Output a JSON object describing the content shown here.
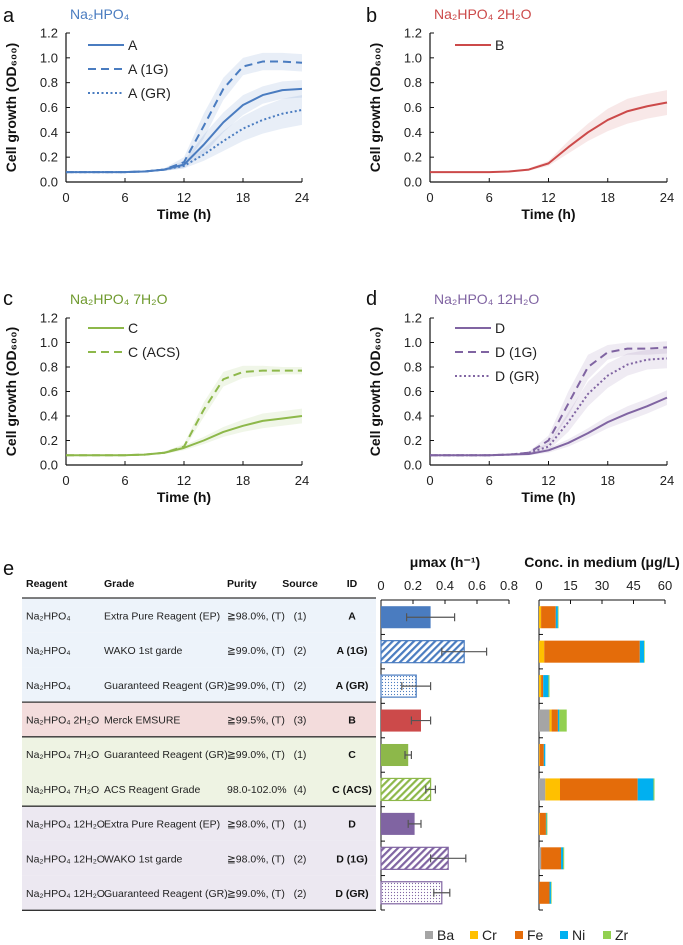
{
  "panel_letters": [
    "a",
    "b",
    "c",
    "d",
    "e"
  ],
  "chart_data": [
    {
      "type": "line",
      "id": "a",
      "title": "Na₂HPO₄",
      "title_color": "#4a7cc0",
      "xlabel": "Time (h)",
      "ylabel": "Cell growth (OD₆₀₀)",
      "xlim": [
        0,
        24
      ],
      "ylim": [
        0,
        1.2
      ],
      "xticks": [
        0,
        6,
        12,
        18,
        24
      ],
      "yticks": [
        "0.0",
        "0.2",
        "0.4",
        "0.6",
        "0.8",
        "1.0",
        "1.2"
      ],
      "x": [
        0,
        2,
        4,
        6,
        8,
        10,
        12,
        14,
        16,
        18,
        20,
        22,
        24
      ],
      "series": [
        {
          "name": "A",
          "style": "solid",
          "color": "#4a7cc0",
          "values": [
            0.08,
            0.08,
            0.08,
            0.08,
            0.085,
            0.1,
            0.14,
            0.3,
            0.48,
            0.62,
            0.7,
            0.74,
            0.75
          ],
          "err": [
            0,
            0,
            0,
            0,
            0,
            0.01,
            0.03,
            0.08,
            0.08,
            0.08,
            0.07,
            0.07,
            0.07
          ]
        },
        {
          "name": "A (1G)",
          "style": "dashed",
          "color": "#4a7cc0",
          "values": [
            0.08,
            0.08,
            0.08,
            0.08,
            0.085,
            0.1,
            0.16,
            0.45,
            0.75,
            0.93,
            0.97,
            0.97,
            0.96
          ],
          "err": [
            0,
            0,
            0,
            0,
            0,
            0.01,
            0.04,
            0.1,
            0.09,
            0.07,
            0.07,
            0.07,
            0.07
          ]
        },
        {
          "name": "A (GR)",
          "style": "dotted",
          "color": "#4a7cc0",
          "values": [
            0.08,
            0.08,
            0.08,
            0.08,
            0.085,
            0.1,
            0.13,
            0.22,
            0.33,
            0.43,
            0.5,
            0.55,
            0.58
          ],
          "err": [
            0,
            0,
            0,
            0,
            0,
            0.01,
            0.02,
            0.05,
            0.08,
            0.1,
            0.11,
            0.12,
            0.12
          ]
        }
      ]
    },
    {
      "type": "line",
      "id": "b",
      "title": "Na₂HPO₄ 2H₂O",
      "title_color": "#cc4a4a",
      "xlabel": "Time (h)",
      "ylabel": "Cell growth (OD₆₀₀)",
      "xlim": [
        0,
        24
      ],
      "ylim": [
        0,
        1.2
      ],
      "xticks": [
        0,
        6,
        12,
        18,
        24
      ],
      "yticks": [
        "0.0",
        "0.2",
        "0.4",
        "0.6",
        "0.8",
        "1.0",
        "1.2"
      ],
      "x": [
        0,
        2,
        4,
        6,
        8,
        10,
        12,
        14,
        16,
        18,
        20,
        22,
        24
      ],
      "series": [
        {
          "name": "B",
          "style": "solid",
          "color": "#cc4a4a",
          "values": [
            0.08,
            0.08,
            0.08,
            0.08,
            0.085,
            0.1,
            0.15,
            0.28,
            0.4,
            0.5,
            0.57,
            0.61,
            0.64
          ],
          "err": [
            0,
            0,
            0,
            0,
            0,
            0.01,
            0.02,
            0.05,
            0.07,
            0.09,
            0.1,
            0.1,
            0.1
          ]
        }
      ]
    },
    {
      "type": "line",
      "id": "c",
      "title": "Na₂HPO₄ 7H₂O",
      "title_color": "#6f9a2e",
      "xlabel": "Time (h)",
      "ylabel": "Cell growth (OD₆₀₀)",
      "xlim": [
        0,
        24
      ],
      "ylim": [
        0,
        1.2
      ],
      "xticks": [
        0,
        6,
        12,
        18,
        24
      ],
      "yticks": [
        "0.0",
        "0.2",
        "0.4",
        "0.6",
        "0.8",
        "1.0",
        "1.2"
      ],
      "x": [
        0,
        2,
        4,
        6,
        8,
        10,
        12,
        14,
        16,
        18,
        20,
        22,
        24
      ],
      "series": [
        {
          "name": "C",
          "style": "solid",
          "color": "#8db84a",
          "values": [
            0.08,
            0.08,
            0.08,
            0.08,
            0.085,
            0.1,
            0.14,
            0.2,
            0.27,
            0.32,
            0.36,
            0.38,
            0.4
          ],
          "err": [
            0,
            0,
            0,
            0,
            0,
            0.01,
            0.02,
            0.03,
            0.04,
            0.05,
            0.06,
            0.06,
            0.06
          ]
        },
        {
          "name": "C (ACS)",
          "style": "dashed",
          "color": "#8db84a",
          "values": [
            0.08,
            0.08,
            0.08,
            0.08,
            0.085,
            0.1,
            0.15,
            0.45,
            0.7,
            0.76,
            0.77,
            0.77,
            0.77
          ],
          "err": [
            0,
            0,
            0,
            0,
            0,
            0.01,
            0.02,
            0.06,
            0.06,
            0.05,
            0.04,
            0.03,
            0.03
          ]
        }
      ]
    },
    {
      "type": "line",
      "id": "d",
      "title": "Na₂HPO₄ 12H₂O",
      "title_color": "#8064a2",
      "xlabel": "Time (h)",
      "ylabel": "Cell growth (OD₆₀₀)",
      "xlim": [
        0,
        24
      ],
      "ylim": [
        0,
        1.2
      ],
      "xticks": [
        0,
        6,
        12,
        18,
        24
      ],
      "yticks": [
        "0.0",
        "0.2",
        "0.4",
        "0.6",
        "0.8",
        "1.0",
        "1.2"
      ],
      "x": [
        0,
        2,
        4,
        6,
        8,
        10,
        12,
        14,
        16,
        18,
        20,
        22,
        24
      ],
      "series": [
        {
          "name": "D",
          "style": "solid",
          "color": "#8064a2",
          "values": [
            0.08,
            0.08,
            0.08,
            0.08,
            0.085,
            0.09,
            0.12,
            0.18,
            0.26,
            0.35,
            0.42,
            0.48,
            0.55
          ],
          "err": [
            0,
            0,
            0,
            0,
            0,
            0.01,
            0.02,
            0.03,
            0.04,
            0.05,
            0.06,
            0.06,
            0.06
          ]
        },
        {
          "name": "D (1G)",
          "style": "dashed",
          "color": "#8064a2",
          "values": [
            0.08,
            0.08,
            0.08,
            0.08,
            0.085,
            0.1,
            0.2,
            0.5,
            0.8,
            0.92,
            0.95,
            0.95,
            0.96
          ],
          "err": [
            0,
            0,
            0,
            0,
            0,
            0.01,
            0.04,
            0.1,
            0.1,
            0.06,
            0.05,
            0.05,
            0.05
          ]
        },
        {
          "name": "D (GR)",
          "style": "dotted",
          "color": "#8064a2",
          "values": [
            0.08,
            0.08,
            0.08,
            0.08,
            0.085,
            0.1,
            0.15,
            0.35,
            0.58,
            0.73,
            0.82,
            0.86,
            0.87
          ],
          "err": [
            0,
            0,
            0,
            0,
            0,
            0.01,
            0.03,
            0.08,
            0.1,
            0.1,
            0.09,
            0.08,
            0.08
          ]
        }
      ]
    },
    {
      "type": "bar",
      "id": "mu",
      "title": "μmax (h⁻¹)",
      "xlim": [
        0,
        0.8
      ],
      "xticks": [
        "0",
        "0.2",
        "0.4",
        "0.6",
        "0.8"
      ],
      "categories": [
        "A",
        "A (1G)",
        "A (GR)",
        "B",
        "C",
        "C (ACS)",
        "D",
        "D (1G)",
        "D (GR)"
      ],
      "values": [
        0.31,
        0.52,
        0.22,
        0.25,
        0.17,
        0.31,
        0.21,
        0.42,
        0.38
      ],
      "err": [
        0.15,
        0.14,
        0.09,
        0.06,
        0.02,
        0.03,
        0.04,
        0.11,
        0.05
      ],
      "colors": [
        "#4a7cc0",
        "#4a7cc0",
        "#4a7cc0",
        "#cc4a4a",
        "#8db84a",
        "#8db84a",
        "#8064a2",
        "#8064a2",
        "#8064a2"
      ],
      "fills": [
        "solid",
        "hatched",
        "dotted",
        "solid",
        "solid",
        "hatched",
        "solid",
        "hatched",
        "dotted"
      ]
    },
    {
      "type": "bar",
      "stacked": true,
      "id": "conc",
      "title": "Conc. in medium (μg/L)",
      "xlim": [
        0,
        60
      ],
      "xticks": [
        "0",
        "15",
        "30",
        "45",
        "60"
      ],
      "categories": [
        "A",
        "A (1G)",
        "A (GR)",
        "B",
        "C",
        "C (ACS)",
        "D",
        "D (1G)",
        "D (GR)"
      ],
      "series": [
        {
          "name": "Ba",
          "color": "#a5a5a5",
          "values": [
            0,
            0,
            0,
            5,
            0,
            3,
            0,
            1,
            0
          ]
        },
        {
          "name": "Cr",
          "color": "#ffc000",
          "values": [
            1,
            2.5,
            1,
            1,
            0.3,
            7,
            0.3,
            0,
            0
          ]
        },
        {
          "name": "Fe",
          "color": "#e46c0a",
          "values": [
            7,
            45.5,
            1,
            3,
            2,
            37,
            3,
            9.5,
            5
          ]
        },
        {
          "name": "Ni",
          "color": "#00b0f0",
          "values": [
            1,
            2,
            2.5,
            0.7,
            0.7,
            7.5,
            0.3,
            1,
            0.7
          ]
        },
        {
          "name": "Zr",
          "color": "#92d050",
          "values": [
            0.3,
            0.3,
            0.5,
            3.5,
            0,
            0.5,
            0.4,
            0.5,
            0.3
          ]
        }
      ]
    }
  ],
  "table": {
    "headers": [
      "Reagent",
      "Grade",
      "Purity",
      "Source",
      "ID"
    ],
    "rows": [
      [
        "Na₂HPO₄",
        "Extra Pure Reagent (EP)",
        "≧98.0%, (T)",
        "(1)",
        "A"
      ],
      [
        "Na₂HPO₄",
        "WAKO 1st garde",
        "≧99.0%, (T)",
        "(2)",
        "A (1G)"
      ],
      [
        "Na₂HPO₄",
        "Guaranteed Reagent (GR)",
        "≧99.0%, (T)",
        "(2)",
        "A (GR)"
      ],
      [
        "Na₂HPO₄ 2H₂O",
        "Merck EMSURE",
        "≧99.5%, (T)",
        "(3)",
        "B"
      ],
      [
        "Na₂HPO₄ 7H₂O",
        "Guaranteed Reagent (GR)",
        "≧99.0%, (T)",
        "(1)",
        "C"
      ],
      [
        "Na₂HPO₄ 7H₂O",
        "ACS Reagent Grade",
        "98.0-102.0%",
        "(4)",
        "C (ACS)"
      ],
      [
        "Na₂HPO₄ 12H₂O",
        "Extra Pure Reagent (EP)",
        "≧98.0%, (T)",
        "(1)",
        "D"
      ],
      [
        "Na₂HPO₄ 12H₂O",
        "WAKO 1st garde",
        "≧98.0%, (T)",
        "(2)",
        "D (1G)"
      ],
      [
        "Na₂HPO₄ 12H₂O",
        "Guaranteed Reagent (GR)",
        "≧99.0%, (T)",
        "(2)",
        "D (GR)"
      ]
    ],
    "group_colors": [
      "#edf3fa",
      "#edf3fa",
      "#edf3fa",
      "#f3dcdc",
      "#eef3e3",
      "#eef3e3",
      "#ece8f1",
      "#ece8f1",
      "#ece8f1"
    ]
  }
}
